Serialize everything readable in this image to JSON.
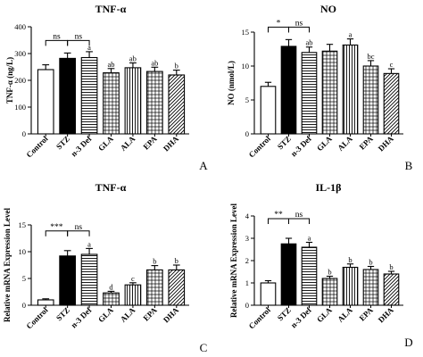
{
  "chart_data": [
    {
      "type": "bar",
      "panel_letter": "A",
      "title": "TNF-α",
      "ylabel": "TNF-α (ng/L)",
      "ylim": [
        0,
        400
      ],
      "yticks": [
        0,
        100,
        200,
        300,
        400
      ],
      "categories": [
        "Control",
        "STZ",
        "n-3 Def",
        "GLA",
        "ALA",
        "EPA",
        "DHA"
      ],
      "values": [
        240,
        282,
        285,
        228,
        247,
        233,
        220
      ],
      "errors": [
        18,
        20,
        22,
        16,
        18,
        16,
        18
      ],
      "patterns": [
        "white",
        "black",
        "hlines",
        "grid",
        "vlines",
        "grid",
        "diag"
      ],
      "letters": [
        "",
        "",
        "a",
        "ab",
        "ab",
        "ab",
        "b"
      ],
      "significance": [
        {
          "from": 0,
          "to": 1,
          "label": "ns"
        },
        {
          "from": 1,
          "to": 2,
          "label": "ns"
        }
      ]
    },
    {
      "type": "bar",
      "panel_letter": "B",
      "title": "NO",
      "ylabel": "NO (nmol/L)",
      "ylim": [
        0,
        15
      ],
      "yticks": [
        0,
        5,
        10,
        15
      ],
      "categories": [
        "Control",
        "STZ",
        "n-3 Def",
        "GLA",
        "ALA",
        "EPA",
        "DHA"
      ],
      "values": [
        7.0,
        12.9,
        12.0,
        12.2,
        13.1,
        10.0,
        8.9
      ],
      "errors": [
        0.6,
        1.0,
        0.8,
        1.0,
        0.9,
        0.8,
        0.7
      ],
      "patterns": [
        "white",
        "black",
        "hlines",
        "grid",
        "vlines",
        "grid",
        "diag"
      ],
      "letters": [
        "",
        "",
        "ab",
        "",
        "a",
        "bc",
        "c"
      ],
      "significance": [
        {
          "from": 0,
          "to": 1,
          "label": "*"
        },
        {
          "from": 1,
          "to": 2,
          "label": "ns"
        }
      ]
    },
    {
      "type": "bar",
      "panel_letter": "C",
      "title": "TNF-α",
      "ylabel": "Relative mRNA Expression Level",
      "ylim": [
        0,
        15
      ],
      "yticks": [
        0,
        5,
        10,
        15
      ],
      "categories": [
        "Control",
        "STZ",
        "n-3 Def",
        "GLA",
        "ALA",
        "EPA",
        "DHA"
      ],
      "values": [
        1.0,
        9.2,
        9.5,
        2.3,
        3.8,
        6.6,
        6.6
      ],
      "errors": [
        0.2,
        1.0,
        1.1,
        0.3,
        0.4,
        0.8,
        0.9
      ],
      "patterns": [
        "white",
        "black",
        "hlines",
        "grid",
        "vlines",
        "grid",
        "diag"
      ],
      "letters": [
        "",
        "",
        "a",
        "d",
        "c",
        "b",
        "b"
      ],
      "significance": [
        {
          "from": 0,
          "to": 1,
          "label": "***"
        },
        {
          "from": 1,
          "to": 2,
          "label": "ns"
        }
      ]
    },
    {
      "type": "bar",
      "panel_letter": "D",
      "title": "IL-1β",
      "ylabel": "Relative mRNA Expression Level",
      "ylim": [
        0,
        4
      ],
      "yticks": [
        0,
        1,
        2,
        3,
        4
      ],
      "categories": [
        "Control",
        "STZ",
        "n-3 Def",
        "GLA",
        "ALA",
        "EPA",
        "DHA"
      ],
      "values": [
        1.0,
        2.75,
        2.6,
        1.2,
        1.7,
        1.6,
        1.4
      ],
      "errors": [
        0.1,
        0.25,
        0.22,
        0.1,
        0.15,
        0.14,
        0.12
      ],
      "patterns": [
        "white",
        "black",
        "hlines",
        "grid",
        "vlines",
        "grid",
        "diag"
      ],
      "letters": [
        "",
        "",
        "a",
        "b",
        "b",
        "b",
        "b"
      ],
      "significance": [
        {
          "from": 0,
          "to": 1,
          "label": "**"
        },
        {
          "from": 1,
          "to": 2,
          "label": "ns"
        }
      ]
    }
  ]
}
